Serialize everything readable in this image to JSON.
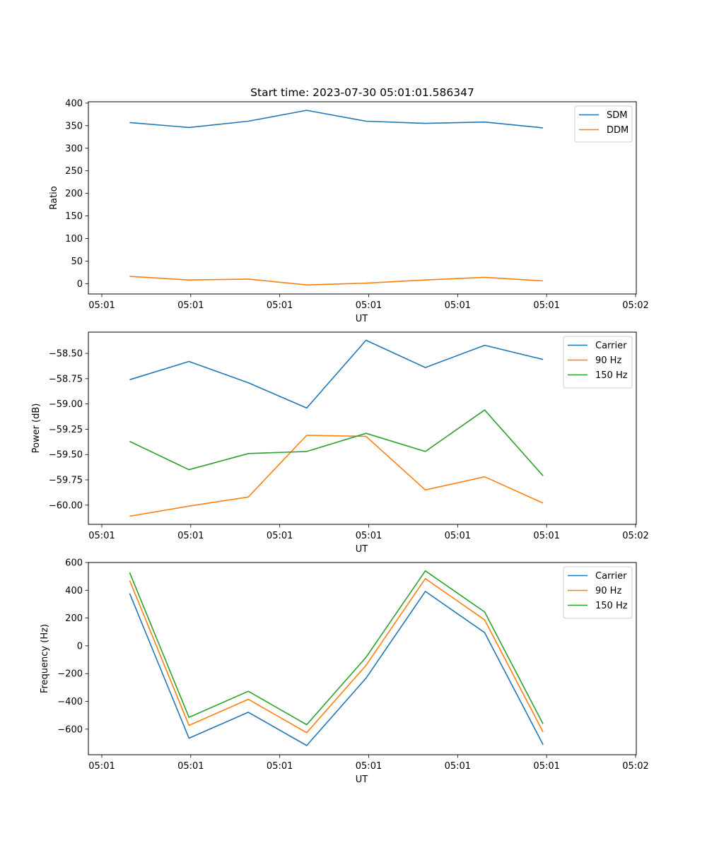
{
  "chart_data": [
    {
      "type": "line",
      "title": "Start time: 2023-07-30 05:01:01.586347",
      "xlabel": "UT",
      "ylabel": "Ratio",
      "x_tick_labels": [
        "05:01",
        "05:01",
        "05:01",
        "05:01",
        "05:01",
        "05:01",
        "05:02"
      ],
      "y_ticks": [
        0,
        50,
        100,
        150,
        200,
        250,
        300,
        350,
        400
      ],
      "y_tick_labels": [
        "0",
        "50",
        "100",
        "150",
        "200",
        "250",
        "300",
        "350",
        "400"
      ],
      "xlim": [
        0,
        6
      ],
      "ylim": [
        -23,
        403
      ],
      "legend_position": "top-right",
      "x": [
        0.47,
        1.13,
        1.79,
        2.44,
        3.1,
        3.76,
        4.42,
        5.07
      ],
      "series": [
        {
          "name": "SDM",
          "color": "#1f77b4",
          "values": [
            357,
            346,
            360,
            384,
            360,
            355,
            358,
            345
          ]
        },
        {
          "name": "DDM",
          "color": "#ff7f0e",
          "values": [
            16,
            8,
            10,
            -3,
            1,
            8,
            14,
            6
          ]
        }
      ]
    },
    {
      "type": "line",
      "title": "",
      "xlabel": "UT",
      "ylabel": "Power (dB)",
      "x_tick_labels": [
        "05:01",
        "05:01",
        "05:01",
        "05:01",
        "05:01",
        "05:01",
        "05:02"
      ],
      "y_ticks": [
        -60.0,
        -59.75,
        -59.5,
        -59.25,
        -59.0,
        -58.75,
        -58.5
      ],
      "y_tick_labels": [
        "−60.00",
        "−59.75",
        "−59.50",
        "−59.25",
        "−59.00",
        "−58.75",
        "−58.50"
      ],
      "xlim": [
        0,
        6
      ],
      "ylim": [
        -60.19,
        -58.29
      ],
      "legend_position": "top-right",
      "x": [
        0.47,
        1.13,
        1.79,
        2.44,
        3.1,
        3.76,
        4.42,
        5.07
      ],
      "series": [
        {
          "name": "Carrier",
          "color": "#1f77b4",
          "values": [
            -58.76,
            -58.58,
            -58.79,
            -59.04,
            -58.37,
            -58.64,
            -58.42,
            -58.56
          ]
        },
        {
          "name": "90 Hz",
          "color": "#ff7f0e",
          "values": [
            -60.11,
            -60.01,
            -59.92,
            -59.31,
            -59.32,
            -59.85,
            -59.72,
            -59.98
          ]
        },
        {
          "name": "150 Hz",
          "color": "#2ca02c",
          "values": [
            -59.37,
            -59.65,
            -59.49,
            -59.47,
            -59.29,
            -59.47,
            -59.06,
            -59.71
          ]
        }
      ]
    },
    {
      "type": "line",
      "title": "",
      "xlabel": "UT",
      "ylabel": "Frequency (Hz)",
      "x_tick_labels": [
        "05:01",
        "05:01",
        "05:01",
        "05:01",
        "05:01",
        "05:01",
        "05:02"
      ],
      "y_ticks": [
        -600,
        -400,
        -200,
        0,
        200,
        400,
        600
      ],
      "y_tick_labels": [
        "−600",
        "−400",
        "−200",
        "0",
        "200",
        "400",
        "600"
      ],
      "xlim": [
        0,
        6
      ],
      "ylim": [
        -784,
        600
      ],
      "legend_position": "top-right",
      "x": [
        0.47,
        1.13,
        1.79,
        2.44,
        3.1,
        3.76,
        4.42,
        5.07
      ],
      "series": [
        {
          "name": "Carrier",
          "color": "#1f77b4",
          "values": [
            377,
            -665,
            -478,
            -718,
            -233,
            392,
            95,
            -711
          ]
        },
        {
          "name": "90 Hz",
          "color": "#ff7f0e",
          "values": [
            470,
            -573,
            -385,
            -625,
            -141,
            484,
            187,
            -620
          ]
        },
        {
          "name": "150 Hz",
          "color": "#2ca02c",
          "values": [
            527,
            -515,
            -327,
            -568,
            -83,
            540,
            244,
            -562
          ]
        }
      ]
    }
  ]
}
